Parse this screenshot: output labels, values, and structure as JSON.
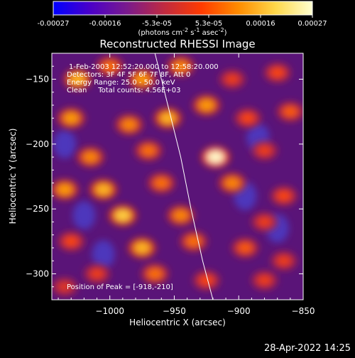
{
  "colorbar": {
    "min": -0.00027,
    "max": 0.00027,
    "tick_labels": [
      "-0.00027",
      "-0.00016",
      "-5.3e-05",
      "5.3e-05",
      "0.00016",
      "0.00027"
    ],
    "unit_parts": [
      "(photons cm",
      "-2",
      " s",
      "-1",
      " asec",
      "-2",
      ")"
    ],
    "colors": [
      "#0000ff",
      "#4b00c8",
      "#7a1a8c",
      "#c02a40",
      "#ff3b00",
      "#ff8c00",
      "#ffd84a",
      "#ffffd0"
    ]
  },
  "chart_data": {
    "type": "heatmap",
    "title": "Reconstructed RHESSI Image",
    "xlabel": "Heliocentric X (arcsec)",
    "ylabel": "Heliocentric Y (arcsec)",
    "xlim": [
      -1045,
      -850
    ],
    "ylim": [
      -320,
      -130
    ],
    "x_ticks": [
      -1000,
      -950,
      -900,
      -850
    ],
    "y_ticks": [
      -150,
      -200,
      -250,
      -300
    ],
    "x_tick_labels": [
      "−1000",
      "−950",
      "−900",
      "−850"
    ],
    "y_tick_labels": [
      "−150",
      "−200",
      "−250",
      "−300"
    ],
    "annotations": [
      "1-Feb-2003 12:52:20.000 to 12:58:20.000",
      "Detectors: 3F 4F 5F 6F 7F 8F, Att 0",
      "Energy Range: 25.0 - 50.0 keV",
      "Clean     Total counts: 4.56E+03"
    ],
    "peak_label": "Position of Peak = [-918,-210]",
    "peak": {
      "x": -918,
      "y": -210
    },
    "limb": [
      [
        -965,
        -130
      ],
      [
        -955,
        -170
      ],
      [
        -945,
        -210
      ],
      [
        -937,
        -250
      ],
      [
        -928,
        -290
      ],
      [
        -920,
        -320
      ]
    ],
    "blobs": [
      {
        "x": -1025,
        "y": -150,
        "v": 0.85
      },
      {
        "x": -1000,
        "y": -140,
        "v": 0.7
      },
      {
        "x": -975,
        "y": -150,
        "v": 0.8
      },
      {
        "x": -945,
        "y": -140,
        "v": 0.75
      },
      {
        "x": -905,
        "y": -150,
        "v": 0.55
      },
      {
        "x": -870,
        "y": -145,
        "v": 0.6
      },
      {
        "x": -1030,
        "y": -180,
        "v": 0.8
      },
      {
        "x": -985,
        "y": -185,
        "v": 0.75
      },
      {
        "x": -955,
        "y": -180,
        "v": 0.85
      },
      {
        "x": -925,
        "y": -170,
        "v": 0.8
      },
      {
        "x": -893,
        "y": -180,
        "v": 0.6
      },
      {
        "x": -860,
        "y": -175,
        "v": 0.65
      },
      {
        "x": -1015,
        "y": -210,
        "v": 0.75
      },
      {
        "x": -970,
        "y": -205,
        "v": 0.7
      },
      {
        "x": -918,
        "y": -210,
        "v": 1.0
      },
      {
        "x": -880,
        "y": -205,
        "v": 0.55
      },
      {
        "x": -1035,
        "y": -235,
        "v": 0.8
      },
      {
        "x": -1005,
        "y": -235,
        "v": 0.85
      },
      {
        "x": -960,
        "y": -230,
        "v": 0.7
      },
      {
        "x": -905,
        "y": -230,
        "v": 0.75
      },
      {
        "x": -865,
        "y": -240,
        "v": 0.6
      },
      {
        "x": -990,
        "y": -255,
        "v": 0.9
      },
      {
        "x": -945,
        "y": -255,
        "v": 0.75
      },
      {
        "x": -880,
        "y": -260,
        "v": 0.55
      },
      {
        "x": -1030,
        "y": -275,
        "v": 0.6
      },
      {
        "x": -975,
        "y": -280,
        "v": 0.85
      },
      {
        "x": -935,
        "y": -275,
        "v": 0.7
      },
      {
        "x": -895,
        "y": -280,
        "v": 0.65
      },
      {
        "x": -1010,
        "y": -300,
        "v": 0.55
      },
      {
        "x": -965,
        "y": -300,
        "v": 0.7
      },
      {
        "x": -925,
        "y": -305,
        "v": 0.6
      },
      {
        "x": -880,
        "y": -305,
        "v": 0.55
      },
      {
        "x": -1035,
        "y": -310,
        "v": 0.5
      },
      {
        "x": -865,
        "y": -290,
        "v": 0.55
      }
    ],
    "cold_spots": [
      {
        "x": -1035,
        "y": -200
      },
      {
        "x": -1020,
        "y": -255
      },
      {
        "x": -895,
        "y": -240
      },
      {
        "x": -870,
        "y": -265
      },
      {
        "x": -1005,
        "y": -285
      },
      {
        "x": -885,
        "y": -195
      }
    ]
  },
  "footer": {
    "timestamp": "28-Apr-2022 14:25"
  }
}
